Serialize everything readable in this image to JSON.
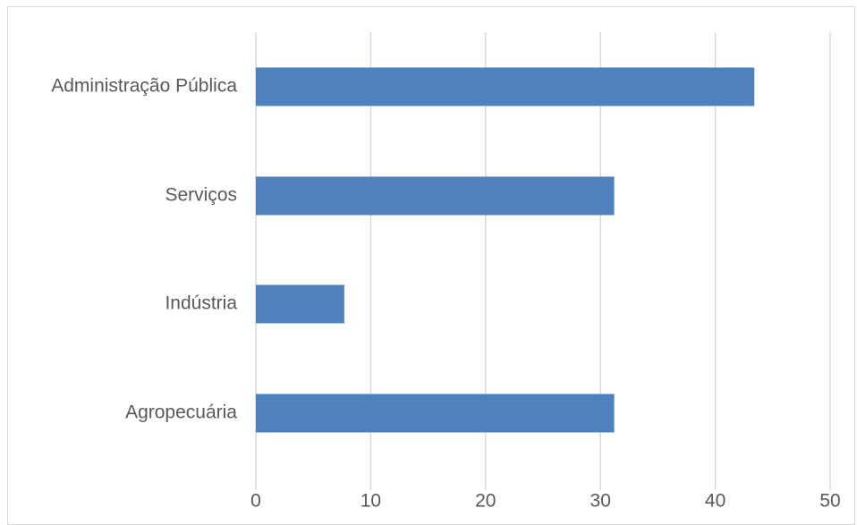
{
  "chart_data": {
    "type": "bar",
    "orientation": "horizontal",
    "categories": [
      "Administração Pública",
      "Serviços",
      "Indústria",
      "Agropecuária"
    ],
    "values": [
      43.4,
      31.2,
      7.7,
      31.2
    ],
    "xlim": [
      0,
      50
    ],
    "xticks": [
      "0",
      "10",
      "20",
      "30",
      "40",
      "50"
    ],
    "grid": true,
    "legend": "none",
    "bar_color": "#4f81bd"
  }
}
